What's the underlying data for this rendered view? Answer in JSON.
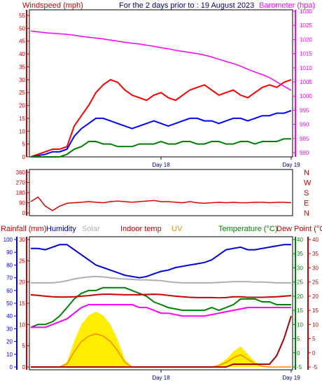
{
  "header": {
    "left_label": "Windspeed (mph)",
    "title": "For the 2 days prior to : 19 August 2023",
    "right_label": "Barometer (hpa)"
  },
  "labels": {
    "rainfall": "Rainfall (mm)",
    "humidity": "Humidity",
    "solar": "Solar",
    "indoor": "Indoor temp",
    "uv": "UV",
    "temperature": "Temperature (°C)",
    "dewpoint": "Dew Point (°C)"
  },
  "colors": {
    "wind_gust": "#ff0000",
    "wind_avg": "#0000ff",
    "wind_low": "#008000",
    "barometer": "#ff00ff",
    "wind_dir": "#dd0000",
    "rain": "#aa0000",
    "humidity": "#0000dd",
    "solar": "#b0b0b0",
    "indoor": "#cc0000",
    "uv": "#ffee00",
    "uv_line": "#ff8800",
    "temperature": "#008000",
    "dewpoint": "#ff00ff",
    "axis_red": "#cc0000",
    "axis_blue": "#0000ff",
    "axis_green": "#008000"
  },
  "chart_data": [
    {
      "type": "line",
      "name": "wind-barometer",
      "x_ticks": [
        "Day 18",
        "Day 19"
      ],
      "left_axis": {
        "label": "Windspeed (mph)",
        "range": [
          0,
          55
        ],
        "ticks": [
          0,
          5,
          10,
          15,
          20,
          25,
          30,
          35,
          40,
          45,
          50,
          55
        ]
      },
      "right_axis": {
        "label": "Barometer (hpa)",
        "range": [
          980,
          1030
        ],
        "ticks": [
          980,
          985,
          990,
          995,
          1000,
          1005,
          1010,
          1015,
          1020,
          1025,
          1030
        ]
      },
      "series": [
        {
          "color": "gust",
          "values": [
            0,
            1,
            2,
            3,
            3,
            4,
            12,
            16,
            20,
            25,
            28,
            30,
            29,
            26,
            24,
            23,
            22,
            24,
            25,
            23,
            22,
            24,
            26,
            27,
            28,
            26,
            24,
            25,
            26,
            24,
            23,
            25,
            27,
            28,
            27,
            29,
            30
          ]
        },
        {
          "color": "avg",
          "values": [
            0,
            0.5,
            1,
            2,
            2,
            3,
            8,
            11,
            13,
            15,
            15,
            14,
            13,
            12,
            11,
            12,
            13,
            14,
            13,
            12,
            13,
            14,
            15,
            15,
            14,
            14,
            13,
            14,
            15,
            15,
            14,
            15,
            16,
            16,
            17,
            17,
            18
          ]
        },
        {
          "color": "low",
          "values": [
            0,
            0,
            0,
            0,
            0,
            1,
            3,
            4,
            6,
            6,
            5,
            5,
            4,
            4,
            4,
            5,
            5,
            5,
            6,
            5,
            5,
            6,
            6,
            5,
            5,
            6,
            6,
            5,
            5,
            6,
            6,
            5,
            6,
            6,
            6,
            7,
            7
          ]
        },
        {
          "color": "barometer",
          "values": [
            1023,
            1022.7,
            1022.4,
            1022.2,
            1022,
            1021.8,
            1021.5,
            1021.1,
            1020.8,
            1020.5,
            1020.2,
            1019.8,
            1019.4,
            1019,
            1018.7,
            1018.4,
            1018,
            1017.6,
            1017.1,
            1016.7,
            1016.2,
            1015.8,
            1015.4,
            1015,
            1014.5,
            1013.8,
            1013,
            1012.2,
            1011.5,
            1010.6,
            1009.5,
            1008.5,
            1007.6,
            1006.5,
            1005,
            1003.5,
            1002
          ]
        }
      ]
    },
    {
      "type": "line",
      "name": "wind-direction",
      "left_axis": {
        "range": [
          0,
          360
        ],
        "ticks": [
          0,
          90,
          180,
          270,
          360
        ]
      },
      "right_axis": {
        "ticks": [
          "N",
          "W",
          "S",
          "E",
          "N"
        ]
      },
      "series": [
        {
          "color": "direction",
          "values": [
            100,
            140,
            60,
            20,
            60,
            85,
            90,
            95,
            100,
            95,
            90,
            100,
            105,
            100,
            95,
            100,
            105,
            110,
            100,
            100,
            95,
            90,
            100,
            90,
            85,
            90,
            95,
            90,
            95,
            90,
            90,
            95,
            95,
            90,
            95,
            95,
            90
          ]
        }
      ]
    },
    {
      "type": "line",
      "name": "temperature-humidity",
      "x_ticks": [
        "Day 18",
        "Day 19"
      ],
      "left_axis_outer": {
        "label": "Rainfall (mm)",
        "range": [
          0,
          100
        ],
        "ticks": [
          0,
          10,
          20,
          30,
          40,
          50,
          60,
          70,
          80,
          90,
          100
        ]
      },
      "left_axis_inner": {
        "label": "Humidity",
        "range": [
          0,
          30
        ],
        "ticks": [
          0,
          5,
          10,
          15,
          20,
          25,
          30
        ]
      },
      "right_axis_inner": {
        "label": "Temperature (°C)",
        "range": [
          -5,
          40
        ],
        "ticks": [
          -5,
          0,
          5,
          10,
          15,
          20,
          25,
          30,
          35,
          40
        ]
      },
      "right_axis_outer": {
        "label": "Dew Point (°C)",
        "range": [
          -5,
          40
        ],
        "ticks": [
          -5,
          0,
          5,
          10,
          15,
          20,
          25,
          30,
          35,
          40
        ]
      },
      "series": [
        {
          "color": "humidity",
          "values": [
            93,
            93,
            92,
            94,
            96,
            96,
            92,
            88,
            84,
            80,
            78,
            76,
            74,
            72,
            71,
            70,
            71,
            73,
            75,
            76,
            78,
            79,
            80,
            81,
            82,
            84,
            88,
            92,
            93,
            94,
            92,
            92,
            93,
            94,
            95,
            96,
            96
          ]
        },
        {
          "color": "temperature",
          "values": [
            9,
            10,
            10,
            11,
            13,
            16,
            19,
            21,
            22,
            22,
            23,
            23,
            23,
            23,
            22,
            21,
            20,
            18,
            17,
            16,
            15.5,
            15,
            15,
            15,
            15,
            16,
            15,
            16,
            17,
            19,
            19,
            19,
            18,
            18,
            17,
            17,
            17
          ]
        },
        {
          "color": "dewpoint",
          "values": [
            9,
            9,
            9,
            10,
            11,
            12,
            14,
            16,
            17,
            17,
            17,
            17,
            17,
            17,
            17,
            16,
            16,
            15,
            14,
            14,
            13.5,
            13,
            13,
            13,
            13,
            13.5,
            14,
            14.5,
            15,
            15.5,
            16,
            16,
            16,
            16,
            16,
            16,
            16
          ]
        },
        {
          "color": "indoor",
          "values": [
            20.5,
            20.3,
            20,
            19.8,
            19.7,
            19.7,
            19.8,
            20,
            20.2,
            20.5,
            20.7,
            20.7,
            20.6,
            20.5,
            20.5,
            20.5,
            20.6,
            20.7,
            20.6,
            20.3,
            20,
            19.8,
            19.6,
            19.5,
            19.5,
            19.5,
            19.4,
            19.5,
            19.8,
            19.8,
            19.6,
            19.6,
            19.6,
            19.7,
            19.8,
            20,
            20.2
          ]
        },
        {
          "color": "solar",
          "values": [
            0,
            0,
            0,
            0,
            2,
            5,
            9,
            12,
            14,
            15,
            14,
            12,
            10,
            9,
            8,
            7,
            7,
            6,
            5,
            3,
            1,
            0,
            0,
            0,
            0,
            0,
            1,
            2,
            3,
            3,
            3,
            2,
            2,
            1,
            0,
            0,
            0
          ]
        },
        {
          "color": "uv",
          "values": [
            0,
            0,
            0,
            0,
            0,
            4,
            20,
            33,
            40,
            43,
            40,
            33,
            21,
            6,
            0,
            0,
            0,
            0,
            0,
            0,
            0,
            0,
            0,
            0,
            0,
            0,
            2,
            6,
            12,
            16,
            10,
            4,
            1,
            0,
            0,
            0,
            0
          ]
        },
        {
          "color": "rain",
          "values": [
            0,
            0,
            0,
            0,
            0,
            0,
            0,
            0,
            0,
            0,
            0,
            0,
            0,
            0,
            0,
            0,
            0,
            0,
            0,
            0,
            0,
            0,
            0,
            0,
            0,
            0,
            0,
            0,
            1,
            1,
            1,
            1,
            1,
            1,
            4,
            10,
            18
          ]
        }
      ]
    }
  ]
}
